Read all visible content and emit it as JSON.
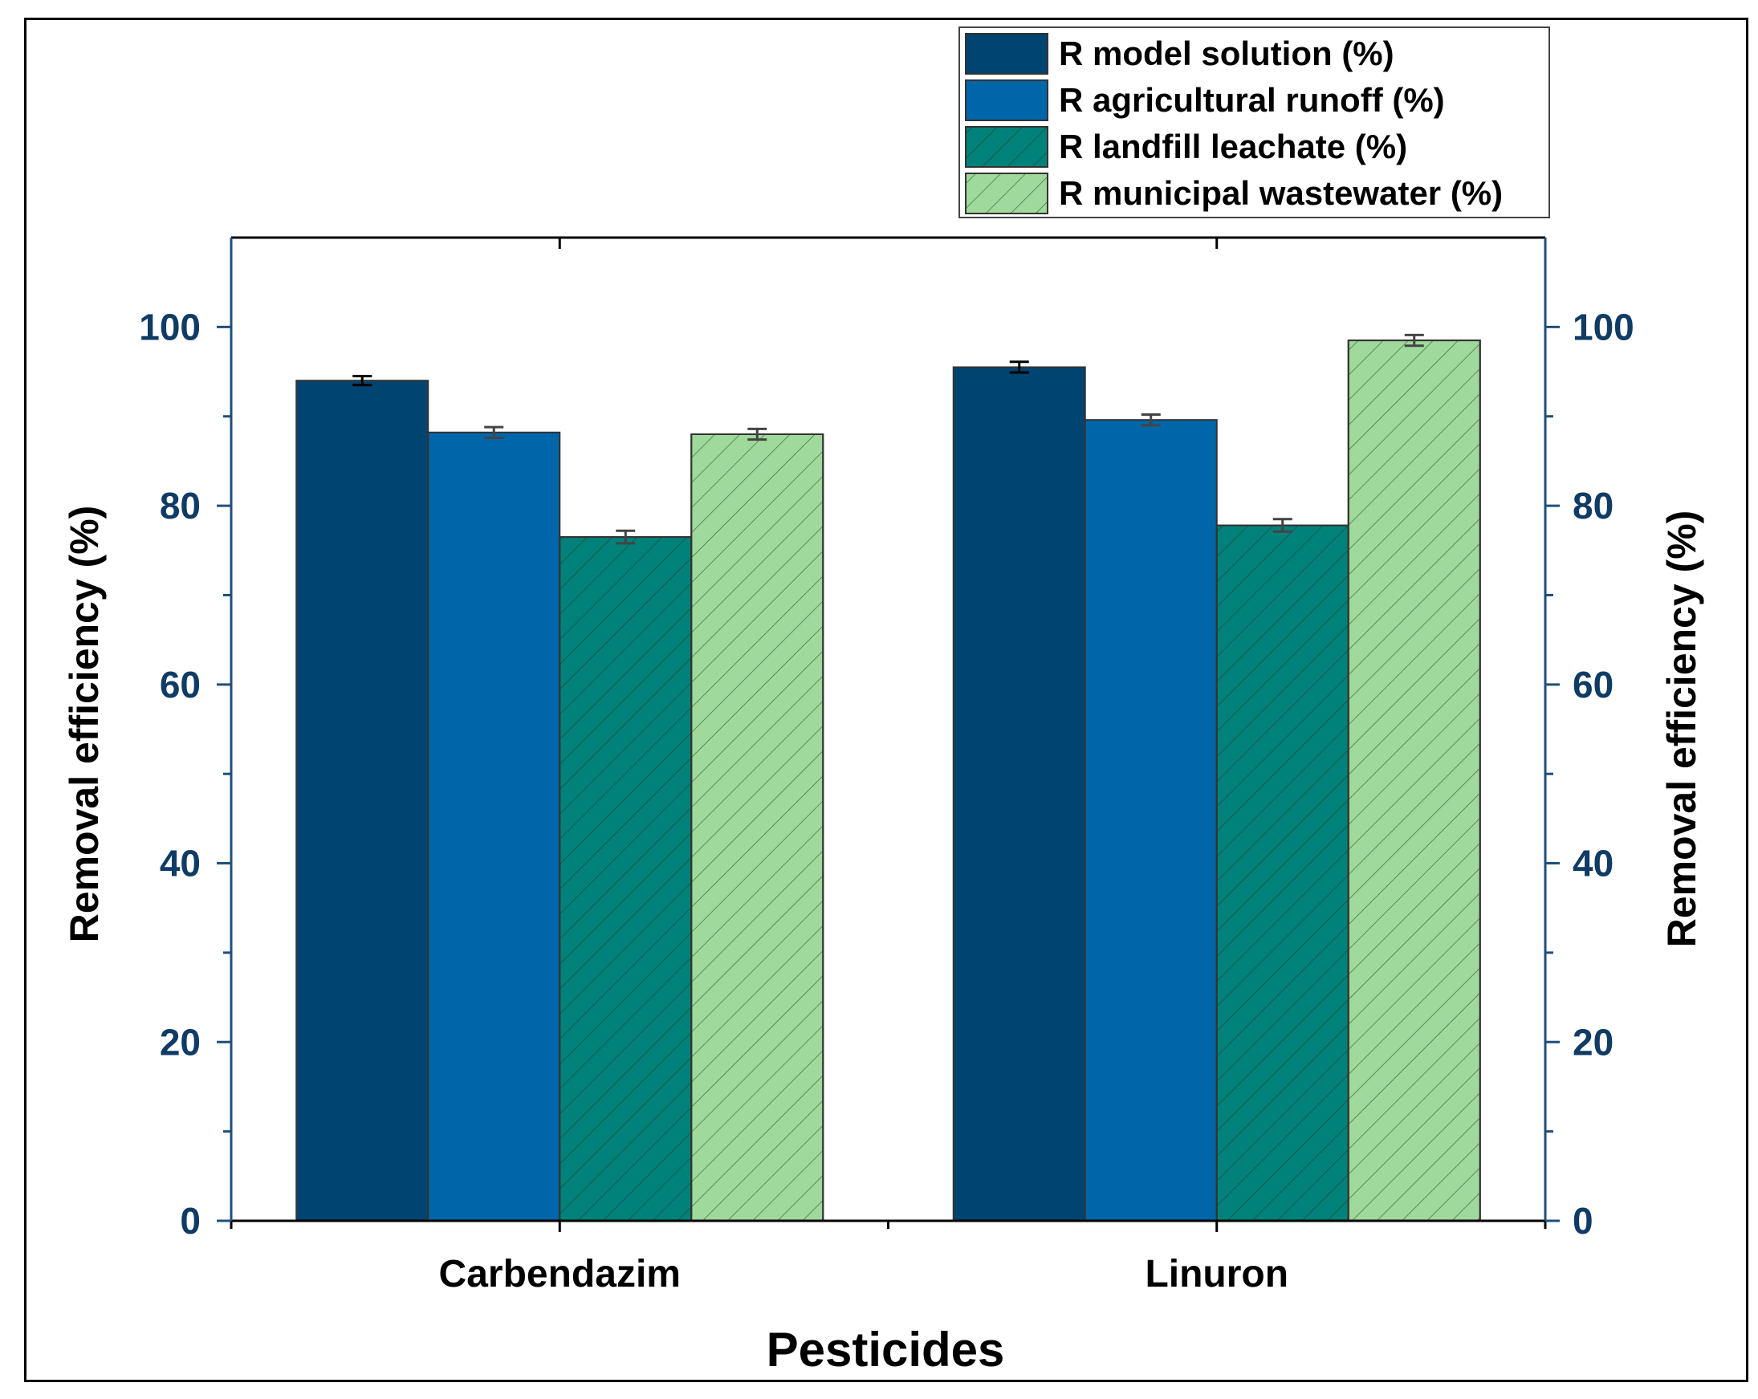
{
  "chart_data": {
    "type": "bar",
    "xlabel": "Pesticides",
    "ylabel": "Removal efficiency (%)",
    "ylabel_right": "Removal efficiency (%)",
    "ylim": [
      0,
      110
    ],
    "yticks": [
      0,
      20,
      40,
      60,
      80,
      100
    ],
    "categories": [
      "Carbendazim",
      "Linuron"
    ],
    "series": [
      {
        "name": "R model solution (%)",
        "values": [
          94.0,
          95.5
        ],
        "errors": [
          0.5,
          0.6
        ],
        "color": "#004471",
        "hatch": false
      },
      {
        "name": "R agricultural runoff (%)",
        "values": [
          88.2,
          89.6
        ],
        "errors": [
          0.6,
          0.6
        ],
        "color": "#0066aa",
        "hatch": false
      },
      {
        "name": "R landfill leachate (%)",
        "values": [
          76.5,
          77.8
        ],
        "errors": [
          0.7,
          0.7
        ],
        "color": "#00827a",
        "hatch": true
      },
      {
        "name": "R municipal wastewater (%)",
        "values": [
          88.0,
          98.5
        ],
        "errors": [
          0.6,
          0.6
        ],
        "color": "#9fd99b",
        "hatch": true
      }
    ],
    "legend_position": "top-right"
  }
}
